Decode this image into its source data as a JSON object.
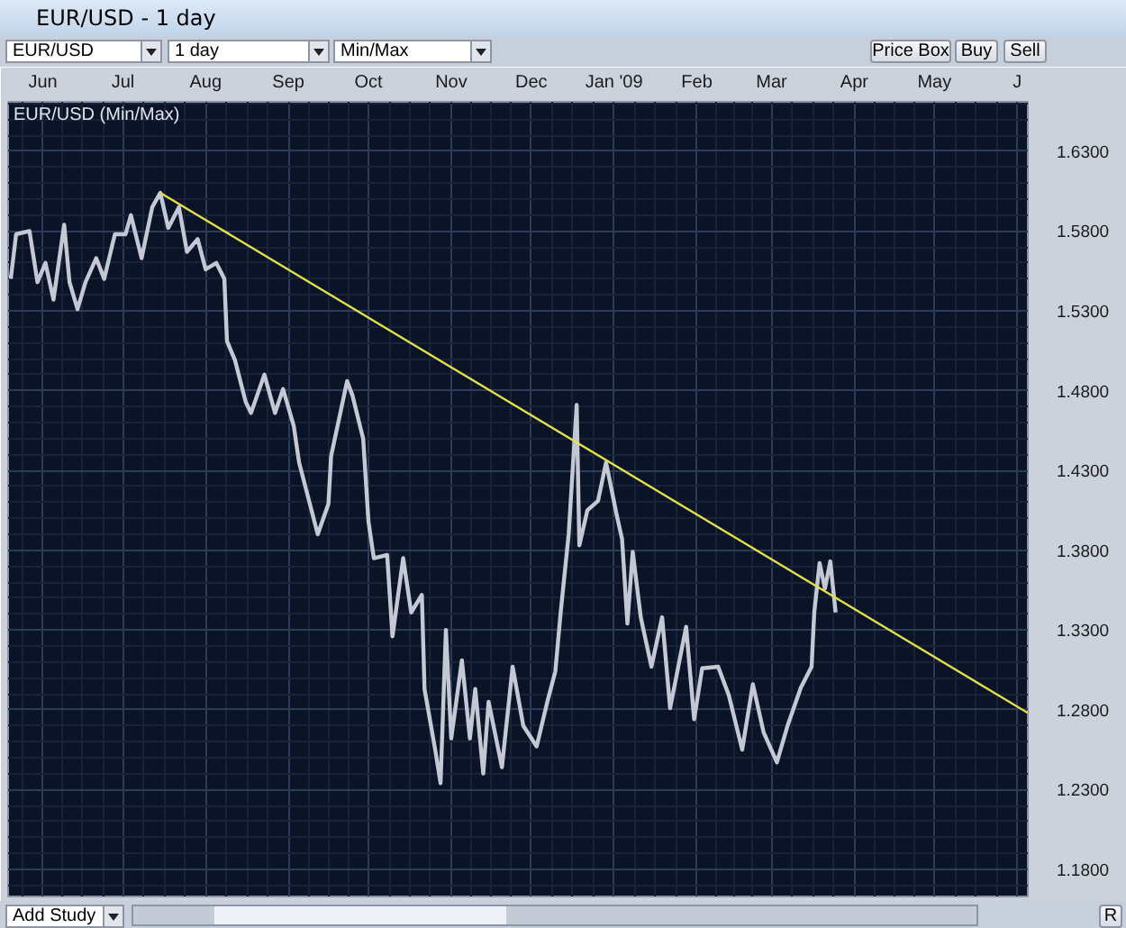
{
  "chart_data": {
    "type": "line",
    "title": "EUR/USD - 1 day",
    "subtitle": "EUR/USD (Min/Max)",
    "annotations": [
      "EUR/USD",
      "1 day",
      "Min/Max",
      "Price Box",
      "Buy",
      "Sell",
      "Add Study",
      "R"
    ],
    "x": [
      "2008-05-20",
      "2008-05-22",
      "2008-05-27",
      "2008-05-30",
      "2008-06-02",
      "2008-06-05",
      "2008-06-09",
      "2008-06-11",
      "2008-06-14",
      "2008-06-17",
      "2008-06-21",
      "2008-06-24",
      "2008-06-28",
      "2008-07-02",
      "2008-07-04",
      "2008-07-08",
      "2008-07-12",
      "2008-07-15",
      "2008-07-18",
      "2008-07-22",
      "2008-07-25",
      "2008-07-29",
      "2008-08-01",
      "2008-08-05",
      "2008-08-08",
      "2008-08-09",
      "2008-08-12",
      "2008-08-16",
      "2008-08-18",
      "2008-08-23",
      "2008-08-27",
      "2008-08-30",
      "2008-09-03",
      "2008-09-05",
      "2008-09-12",
      "2008-09-16",
      "2008-09-17",
      "2008-09-23",
      "2008-09-25",
      "2008-09-29",
      "2008-10-01",
      "2008-10-03",
      "2008-10-08",
      "2008-10-10",
      "2008-10-14",
      "2008-10-17",
      "2008-10-21",
      "2008-10-22",
      "2008-10-26",
      "2008-10-28",
      "2008-10-30",
      "2008-11-01",
      "2008-11-05",
      "2008-11-08",
      "2008-11-10",
      "2008-11-13",
      "2008-11-15",
      "2008-11-20",
      "2008-11-24",
      "2008-11-28",
      "2008-12-03",
      "2008-12-07",
      "2008-12-10",
      "2008-12-12",
      "2008-12-15",
      "2008-12-18",
      "2008-12-19",
      "2008-12-22",
      "2008-12-26",
      "2008-12-29",
      "2009-01-02",
      "2009-01-04",
      "2009-01-06",
      "2009-01-08",
      "2009-01-11",
      "2009-01-15",
      "2009-01-19",
      "2009-01-22",
      "2009-01-28",
      "2009-01-31",
      "2009-02-03",
      "2009-02-09",
      "2009-02-13",
      "2009-02-18",
      "2009-02-22",
      "2009-02-26",
      "2009-03-03",
      "2009-03-07",
      "2009-03-12",
      "2009-03-16",
      "2009-03-17",
      "2009-03-19",
      "2009-03-21",
      "2009-03-23",
      "2009-03-25"
    ],
    "series": [
      {
        "color": "#c4c8d4",
        "values": [
          1.55,
          1.578,
          1.58,
          1.548,
          1.56,
          1.537,
          1.584,
          1.548,
          1.531,
          1.548,
          1.563,
          1.55,
          1.578,
          1.578,
          1.59,
          1.563,
          1.595,
          1.604,
          1.582,
          1.595,
          1.567,
          1.575,
          1.556,
          1.56,
          1.55,
          1.511,
          1.499,
          1.473,
          1.466,
          1.49,
          1.466,
          1.481,
          1.458,
          1.435,
          1.39,
          1.409,
          1.439,
          1.486,
          1.477,
          1.45,
          1.398,
          1.375,
          1.377,
          1.326,
          1.375,
          1.341,
          1.352,
          1.293,
          1.255,
          1.234,
          1.33,
          1.262,
          1.311,
          1.262,
          1.293,
          1.24,
          1.285,
          1.244,
          1.307,
          1.27,
          1.257,
          1.285,
          1.304,
          1.341,
          1.39,
          1.471,
          1.383,
          1.405,
          1.411,
          1.435,
          1.402,
          1.387,
          1.334,
          1.379,
          1.338,
          1.307,
          1.338,
          1.281,
          1.332,
          1.274,
          1.306,
          1.307,
          1.289,
          1.255,
          1.296,
          1.266,
          1.247,
          1.27,
          1.294,
          1.307,
          1.341,
          1.372,
          1.356,
          1.373,
          1.341
        ]
      },
      {
        "type": "line",
        "color": "#e2e04c",
        "x": [
          "2008-07-15",
          "2009-06-05"
        ],
        "values": [
          1.604,
          1.278
        ]
      }
    ],
    "xlim": [
      "2008-05-19",
      "2009-06-05"
    ],
    "xticks": [
      {
        "value": "2008-06-01",
        "label": "Jun"
      },
      {
        "value": "2008-07-01",
        "label": "Jul"
      },
      {
        "value": "2008-08-01",
        "label": "Aug"
      },
      {
        "value": "2008-09-01",
        "label": "Sep"
      },
      {
        "value": "2008-10-01",
        "label": "Oct"
      },
      {
        "value": "2008-11-01",
        "label": "Nov"
      },
      {
        "value": "2008-12-01",
        "label": "Dec"
      },
      {
        "value": "2009-01-01",
        "label": "Jan '09"
      },
      {
        "value": "2009-02-01",
        "label": "Feb"
      },
      {
        "value": "2009-03-01",
        "label": "Mar"
      },
      {
        "value": "2009-04-01",
        "label": "Apr"
      },
      {
        "value": "2009-05-01",
        "label": "May"
      },
      {
        "value": "2009-06-01",
        "label": "J"
      }
    ],
    "ylim": [
      1.163,
      1.661
    ],
    "yticks": [
      {
        "value": 1.18,
        "label": "1.1800"
      },
      {
        "value": 1.23,
        "label": "1.2300"
      },
      {
        "value": 1.28,
        "label": "1.2800"
      },
      {
        "value": 1.33,
        "label": "1.3300"
      },
      {
        "value": 1.38,
        "label": "1.3800"
      },
      {
        "value": 1.43,
        "label": "1.4300"
      },
      {
        "value": 1.48,
        "label": "1.4800"
      },
      {
        "value": 1.53,
        "label": "1.5300"
      },
      {
        "value": 1.58,
        "label": "1.5800"
      },
      {
        "value": 1.63,
        "label": "1.6300"
      }
    ],
    "grid": true
  }
}
